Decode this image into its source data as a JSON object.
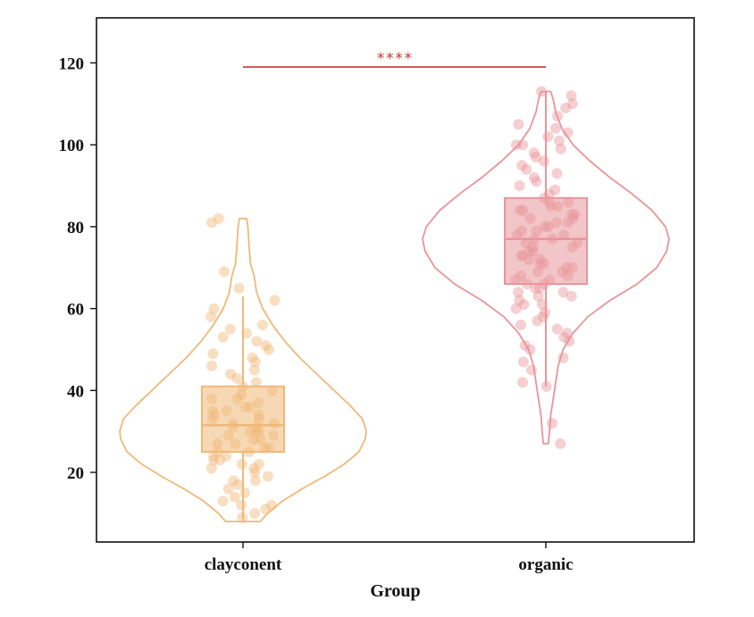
{
  "chart_data": {
    "type": "violin",
    "xlabel": "Group",
    "ylabel": "",
    "ylim": [
      3,
      131
    ],
    "yticks": [
      20,
      40,
      60,
      80,
      100,
      120
    ],
    "grid": false,
    "categories": [
      "clayconent",
      "organic"
    ],
    "colors": {
      "clayconent": "#f0b878",
      "organic": "#e8959a",
      "significance": "#c0392b"
    },
    "groups": [
      {
        "name": "clayconent",
        "box": {
          "q1": 25,
          "median": 31.5,
          "q3": 41,
          "whisker_low": 8,
          "whisker_high": 63
        },
        "violin": {
          "profile": [
            [
              8,
              0.14
            ],
            [
              10,
              0.2
            ],
            [
              13,
              0.32
            ],
            [
              16,
              0.48
            ],
            [
              19,
              0.66
            ],
            [
              22,
              0.82
            ],
            [
              25,
              0.94
            ],
            [
              28,
              0.99
            ],
            [
              30,
              1.0
            ],
            [
              33,
              0.97
            ],
            [
              36,
              0.88
            ],
            [
              40,
              0.74
            ],
            [
              44,
              0.6
            ],
            [
              48,
              0.46
            ],
            [
              52,
              0.34
            ],
            [
              56,
              0.24
            ],
            [
              60,
              0.16
            ],
            [
              64,
              0.11
            ],
            [
              68,
              0.09
            ],
            [
              71,
              0.06
            ],
            [
              75,
              0.05
            ],
            [
              80,
              0.04
            ],
            [
              82,
              0.03
            ]
          ]
        },
        "points": [
          9,
          10,
          11,
          12,
          12,
          13,
          14,
          15,
          16,
          17,
          18,
          18,
          19,
          20,
          21,
          21,
          22,
          22,
          23,
          23,
          24,
          24,
          25,
          25,
          26,
          26,
          27,
          27,
          28,
          28,
          29,
          29,
          30,
          30,
          30,
          31,
          31,
          32,
          32,
          33,
          33,
          34,
          34,
          35,
          35,
          36,
          36,
          37,
          38,
          38,
          39,
          40,
          41,
          42,
          43,
          44,
          45,
          46,
          47,
          48,
          49,
          50,
          51,
          52,
          53,
          54,
          55,
          56,
          58,
          60,
          62,
          65,
          69,
          81,
          82
        ]
      },
      {
        "name": "organic",
        "box": {
          "q1": 66,
          "median": 77,
          "q3": 87,
          "whisker_low": 41,
          "whisker_high": 113
        },
        "violin": {
          "profile": [
            [
              27,
              0.02
            ],
            [
              30,
              0.03
            ],
            [
              34,
              0.04
            ],
            [
              38,
              0.06
            ],
            [
              42,
              0.08
            ],
            [
              46,
              0.1
            ],
            [
              50,
              0.14
            ],
            [
              54,
              0.22
            ],
            [
              58,
              0.34
            ],
            [
              62,
              0.52
            ],
            [
              66,
              0.74
            ],
            [
              70,
              0.9
            ],
            [
              74,
              0.98
            ],
            [
              77,
              1.0
            ],
            [
              80,
              0.97
            ],
            [
              84,
              0.86
            ],
            [
              88,
              0.7
            ],
            [
              92,
              0.52
            ],
            [
              96,
              0.36
            ],
            [
              100,
              0.22
            ],
            [
              104,
              0.13
            ],
            [
              108,
              0.08
            ],
            [
              111,
              0.06
            ],
            [
              113,
              0.04
            ]
          ]
        },
        "points": [
          27,
          32,
          41,
          42,
          45,
          47,
          48,
          50,
          51,
          52,
          53,
          54,
          55,
          56,
          57,
          58,
          59,
          60,
          61,
          61,
          62,
          63,
          63,
          64,
          64,
          65,
          65,
          66,
          66,
          67,
          67,
          68,
          68,
          69,
          69,
          70,
          70,
          71,
          71,
          72,
          72,
          73,
          73,
          74,
          74,
          75,
          75,
          76,
          76,
          77,
          77,
          78,
          78,
          79,
          79,
          80,
          80,
          81,
          81,
          82,
          82,
          83,
          83,
          84,
          84,
          85,
          85,
          86,
          86,
          87,
          88,
          89,
          90,
          91,
          92,
          93,
          94,
          95,
          96,
          97,
          98,
          99,
          100,
          100,
          101,
          102,
          103,
          104,
          105,
          107,
          109,
          110,
          112,
          113
        ]
      }
    ],
    "annotations": [
      {
        "text": "****",
        "from": "clayconent",
        "to": "organic",
        "y": 119
      }
    ]
  }
}
